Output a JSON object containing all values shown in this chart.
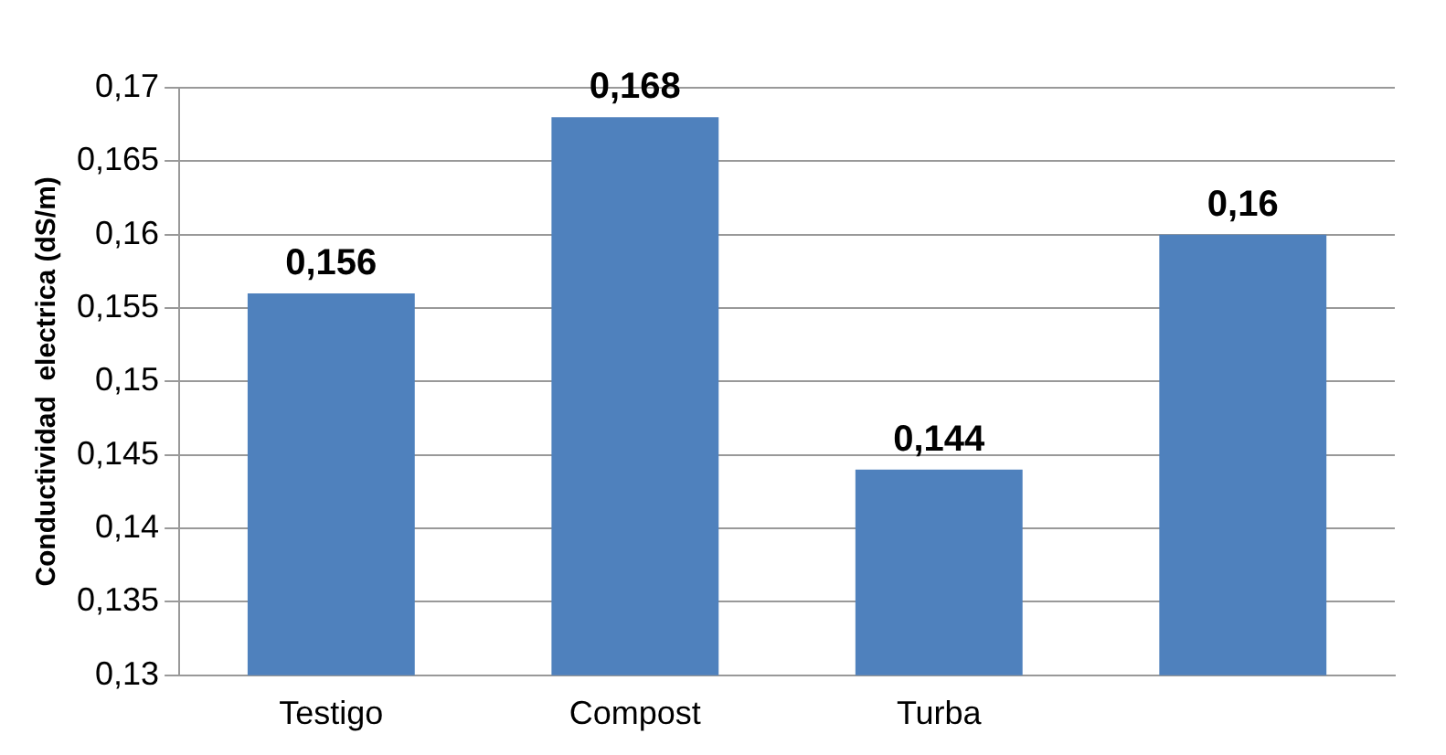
{
  "chart_data": {
    "type": "bar",
    "ylabel": "Conductividad  electrica (dS/m)",
    "categories": [
      "Testigo",
      "Compost",
      "Turba",
      null
    ],
    "values": [
      0.156,
      0.168,
      0.144,
      0.16
    ],
    "value_labels": [
      "0,156",
      "0,168",
      "0,144",
      "0,16"
    ],
    "color": "#4f81bd",
    "ylim": [
      0.13,
      0.17
    ],
    "yticks": [
      {
        "value": 0.13,
        "label": "0,13"
      },
      {
        "value": 0.135,
        "label": "0,135"
      },
      {
        "value": 0.14,
        "label": "0,14"
      },
      {
        "value": 0.145,
        "label": "0,145"
      },
      {
        "value": 0.15,
        "label": "0,15"
      },
      {
        "value": 0.155,
        "label": "0,155"
      },
      {
        "value": 0.16,
        "label": "0,16"
      },
      {
        "value": 0.165,
        "label": "0,165"
      },
      {
        "value": 0.17,
        "label": "0,17"
      }
    ],
    "grid": "y"
  }
}
